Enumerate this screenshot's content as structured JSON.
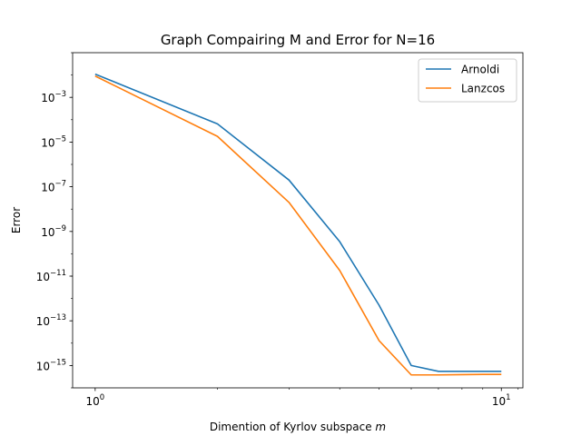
{
  "chart_data": {
    "type": "line",
    "title": "Graph Compairing M and Error for N=16",
    "xlabel": "Dimention of Kyrlov subspace m",
    "xlabel_main": "Dimention of Kyrlov subspace ",
    "xlabel_var": "m",
    "ylabel": "Error",
    "xscale": "log",
    "yscale": "log",
    "xlim": [
      0.88,
      11.3
    ],
    "ylim": [
      1e-16,
      0.1
    ],
    "legend_position": "top-right",
    "grid": false,
    "x": [
      1,
      2,
      3,
      4,
      5,
      6,
      7,
      8,
      9,
      10
    ],
    "series": [
      {
        "name": "Arnoldi",
        "color": "#1f77b4",
        "values": [
          0.011,
          6.5e-05,
          2e-07,
          3.5e-10,
          5e-13,
          1e-15,
          5.5e-16,
          5.5e-16,
          5.5e-16,
          5.5e-16
        ]
      },
      {
        "name": "Lanzcos",
        "color": "#ff7f0e",
        "values": [
          0.009,
          1.8e-05,
          2e-08,
          1.8e-11,
          1.3e-14,
          3.8e-16,
          3.8e-16,
          3.9e-16,
          4e-16,
          4e-16
        ]
      }
    ],
    "x_ticks": [
      {
        "value": 1,
        "base": "10",
        "exp": "0"
      },
      {
        "value": 10,
        "base": "10",
        "exp": "1"
      }
    ],
    "y_ticks": [
      {
        "value": 0.001,
        "base": "10",
        "exp": "−3"
      },
      {
        "value": 1e-05,
        "base": "10",
        "exp": "−5"
      },
      {
        "value": 1e-07,
        "base": "10",
        "exp": "−7"
      },
      {
        "value": 1e-09,
        "base": "10",
        "exp": "−9"
      },
      {
        "value": 1e-11,
        "base": "10",
        "exp": "−11"
      },
      {
        "value": 1e-13,
        "base": "10",
        "exp": "−13"
      },
      {
        "value": 1e-15,
        "base": "10",
        "exp": "−15"
      }
    ]
  }
}
